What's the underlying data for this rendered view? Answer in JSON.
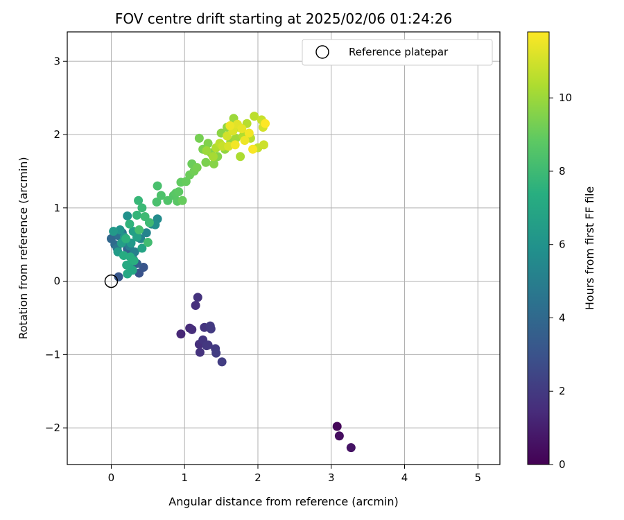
{
  "chart_data": {
    "type": "scatter",
    "title": "FOV centre drift starting at 2025/02/06 01:24:26",
    "xlabel": "Angular distance from reference (arcmin)",
    "ylabel": "Rotation from reference (arcmin)",
    "xlim": [
      -0.6,
      5.3
    ],
    "ylim": [
      -2.5,
      3.4
    ],
    "xticks": [
      0,
      1,
      2,
      3,
      4,
      5
    ],
    "yticks": [
      -2,
      -1,
      0,
      1,
      2,
      3
    ],
    "xtick_labels": [
      "0",
      "1",
      "2",
      "3",
      "4",
      "5"
    ],
    "ytick_labels": [
      "−2",
      "−1",
      "0",
      "1",
      "2",
      "3"
    ],
    "grid": true,
    "legend": {
      "placement": "top-right",
      "entries": [
        {
          "label": "Reference platepar",
          "marker": "open-circle",
          "color": "#000000"
        }
      ]
    },
    "reference_point": {
      "x": 0,
      "y": 0
    },
    "colorbar": {
      "label": "Hours from first FF file",
      "colormap": "viridis",
      "range": [
        0,
        11.8
      ],
      "ticks": [
        0,
        2,
        4,
        6,
        8,
        10
      ],
      "tick_labels": [
        "0",
        "2",
        "4",
        "6",
        "8",
        "10"
      ]
    },
    "points": [
      [
        3.08,
        -1.98,
        0.2
      ],
      [
        3.11,
        -2.11,
        0.4
      ],
      [
        3.27,
        -2.27,
        0.6
      ],
      [
        0.95,
        -0.72,
        1.3
      ],
      [
        1.07,
        -0.64,
        1.4
      ],
      [
        1.1,
        -0.66,
        1.5
      ],
      [
        1.15,
        -0.33,
        1.6
      ],
      [
        1.18,
        -0.22,
        1.7
      ],
      [
        1.2,
        -0.86,
        1.6
      ],
      [
        1.21,
        -0.97,
        1.7
      ],
      [
        1.25,
        -0.8,
        1.8
      ],
      [
        1.27,
        -0.63,
        1.8
      ],
      [
        1.3,
        -0.88,
        1.9
      ],
      [
        1.32,
        -0.87,
        1.9
      ],
      [
        1.35,
        -0.61,
        2.0
      ],
      [
        1.36,
        -0.65,
        2.0
      ],
      [
        1.42,
        -0.92,
        2.0
      ],
      [
        1.43,
        -0.98,
        2.1
      ],
      [
        1.51,
        -1.1,
        2.1
      ],
      [
        0.38,
        0.11,
        3.0
      ],
      [
        0.44,
        0.19,
        3.1
      ],
      [
        0.1,
        0.06,
        3.2
      ],
      [
        0.3,
        0.3,
        3.4
      ],
      [
        0.35,
        0.24,
        3.5
      ],
      [
        0.28,
        0.36,
        3.6
      ],
      [
        0.22,
        0.44,
        3.7
      ],
      [
        0.0,
        0.58,
        3.9
      ],
      [
        0.05,
        0.5,
        4.1
      ],
      [
        0.1,
        0.62,
        4.3
      ],
      [
        0.15,
        0.66,
        4.5
      ],
      [
        0.08,
        0.45,
        4.6
      ],
      [
        0.2,
        0.55,
        4.8
      ],
      [
        0.25,
        0.48,
        5.0
      ],
      [
        0.32,
        0.4,
        5.1
      ],
      [
        0.4,
        0.58,
        5.2
      ],
      [
        0.48,
        0.66,
        5.3
      ],
      [
        0.55,
        0.78,
        5.5
      ],
      [
        0.63,
        0.85,
        5.6
      ],
      [
        0.6,
        0.77,
        5.8
      ],
      [
        0.22,
        0.89,
        5.9
      ],
      [
        0.12,
        0.7,
        6.0
      ],
      [
        0.18,
        0.6,
        6.1
      ],
      [
        0.27,
        0.52,
        6.2
      ],
      [
        0.03,
        0.68,
        6.3
      ],
      [
        0.09,
        0.4,
        6.4
      ],
      [
        0.14,
        0.52,
        6.5
      ],
      [
        0.3,
        0.68,
        6.6
      ],
      [
        0.35,
        0.6,
        6.7
      ],
      [
        0.42,
        0.45,
        6.8
      ],
      [
        0.24,
        0.22,
        6.9
      ],
      [
        0.22,
        0.1,
        7.0
      ],
      [
        0.29,
        0.15,
        7.0
      ],
      [
        0.21,
        0.22,
        7.1
      ],
      [
        0.17,
        0.35,
        7.2
      ],
      [
        0.26,
        0.33,
        7.3
      ],
      [
        0.31,
        0.28,
        7.4
      ],
      [
        0.2,
        0.58,
        7.5
      ],
      [
        0.25,
        0.78,
        7.6
      ],
      [
        0.35,
        0.9,
        7.7
      ],
      [
        0.37,
        1.1,
        7.8
      ],
      [
        0.42,
        1.0,
        7.9
      ],
      [
        0.46,
        0.88,
        8.0
      ],
      [
        0.52,
        0.8,
        8.0
      ],
      [
        0.5,
        0.53,
        8.1
      ],
      [
        0.38,
        0.7,
        8.2
      ],
      [
        0.62,
        1.08,
        8.3
      ],
      [
        0.63,
        1.3,
        8.3
      ],
      [
        0.68,
        1.17,
        8.4
      ],
      [
        0.77,
        1.1,
        8.5
      ],
      [
        0.85,
        1.17,
        8.6
      ],
      [
        0.88,
        1.2,
        8.7
      ],
      [
        0.9,
        1.09,
        8.7
      ],
      [
        0.92,
        1.22,
        8.8
      ],
      [
        0.95,
        1.35,
        8.9
      ],
      [
        0.97,
        1.1,
        9.0
      ],
      [
        1.02,
        1.36,
        9.0
      ],
      [
        1.07,
        1.45,
        9.1
      ],
      [
        1.1,
        1.6,
        9.1
      ],
      [
        1.13,
        1.5,
        9.2
      ],
      [
        1.17,
        1.55,
        9.3
      ],
      [
        1.2,
        1.95,
        9.3
      ],
      [
        1.25,
        1.8,
        9.4
      ],
      [
        1.29,
        1.62,
        9.4
      ],
      [
        1.32,
        1.88,
        9.5
      ],
      [
        1.36,
        1.75,
        9.5
      ],
      [
        1.4,
        1.6,
        9.6
      ],
      [
        1.45,
        1.7,
        9.6
      ],
      [
        1.5,
        2.02,
        9.7
      ],
      [
        1.55,
        1.8,
        9.8
      ],
      [
        1.58,
        2.1,
        9.8
      ],
      [
        1.63,
        1.9,
        9.9
      ],
      [
        1.67,
        2.22,
        10.0
      ],
      [
        1.7,
        1.95,
        10.1
      ],
      [
        1.74,
        2.1,
        10.2
      ],
      [
        1.76,
        1.7,
        10.3
      ],
      [
        1.8,
        1.98,
        10.4
      ],
      [
        1.85,
        2.15,
        10.5
      ],
      [
        1.9,
        1.95,
        10.5
      ],
      [
        1.95,
        2.25,
        10.6
      ],
      [
        2.0,
        1.82,
        10.7
      ],
      [
        2.05,
        2.2,
        10.8
      ],
      [
        2.08,
        1.86,
        10.9
      ],
      [
        2.07,
        2.1,
        11.0
      ],
      [
        1.3,
        1.78,
        10.0
      ],
      [
        1.39,
        1.7,
        10.2
      ],
      [
        1.43,
        1.82,
        10.4
      ],
      [
        1.48,
        1.88,
        10.6
      ],
      [
        1.52,
        1.84,
        10.8
      ],
      [
        1.58,
        1.98,
        11.0
      ],
      [
        1.6,
        1.84,
        11.1
      ],
      [
        1.66,
        2.05,
        11.2
      ],
      [
        1.72,
        2.14,
        11.3
      ],
      [
        1.78,
        2.08,
        11.4
      ],
      [
        1.82,
        1.92,
        11.5
      ],
      [
        1.88,
        2.02,
        11.6
      ],
      [
        1.93,
        1.8,
        11.7
      ],
      [
        2.1,
        2.15,
        11.8
      ],
      [
        1.62,
        2.12,
        11.5
      ],
      [
        1.69,
        1.86,
        11.6
      ]
    ]
  }
}
